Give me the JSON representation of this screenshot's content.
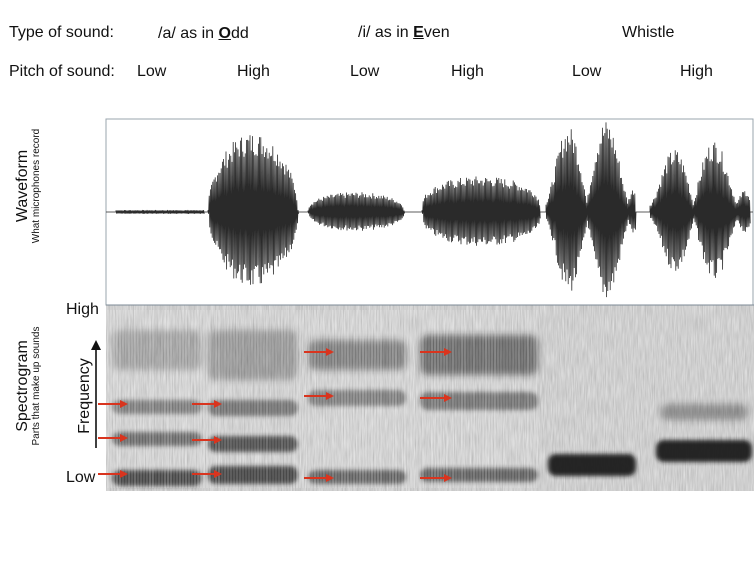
{
  "header": {
    "type_label": "Type of sound:",
    "pitch_label": "Pitch of sound:",
    "types": [
      {
        "pre": "/a/ as in ",
        "key": "O",
        "post": "dd"
      },
      {
        "pre": "/i/ as in ",
        "key": "E",
        "post": "ven"
      },
      {
        "pre": "",
        "key": "",
        "post": "Whistle"
      }
    ],
    "pitches": [
      "Low",
      "High",
      "Low",
      "High",
      "Low",
      "High"
    ]
  },
  "waveform": {
    "title": "Waveform",
    "subtitle": "What microphones record"
  },
  "spectrogram": {
    "title": "Spectrogram",
    "subtitle": "Parts that make up sounds",
    "axis_high": "High",
    "axis_low": "Low",
    "axis_label": "Frequency",
    "arrow_color": "#d9341e"
  }
}
